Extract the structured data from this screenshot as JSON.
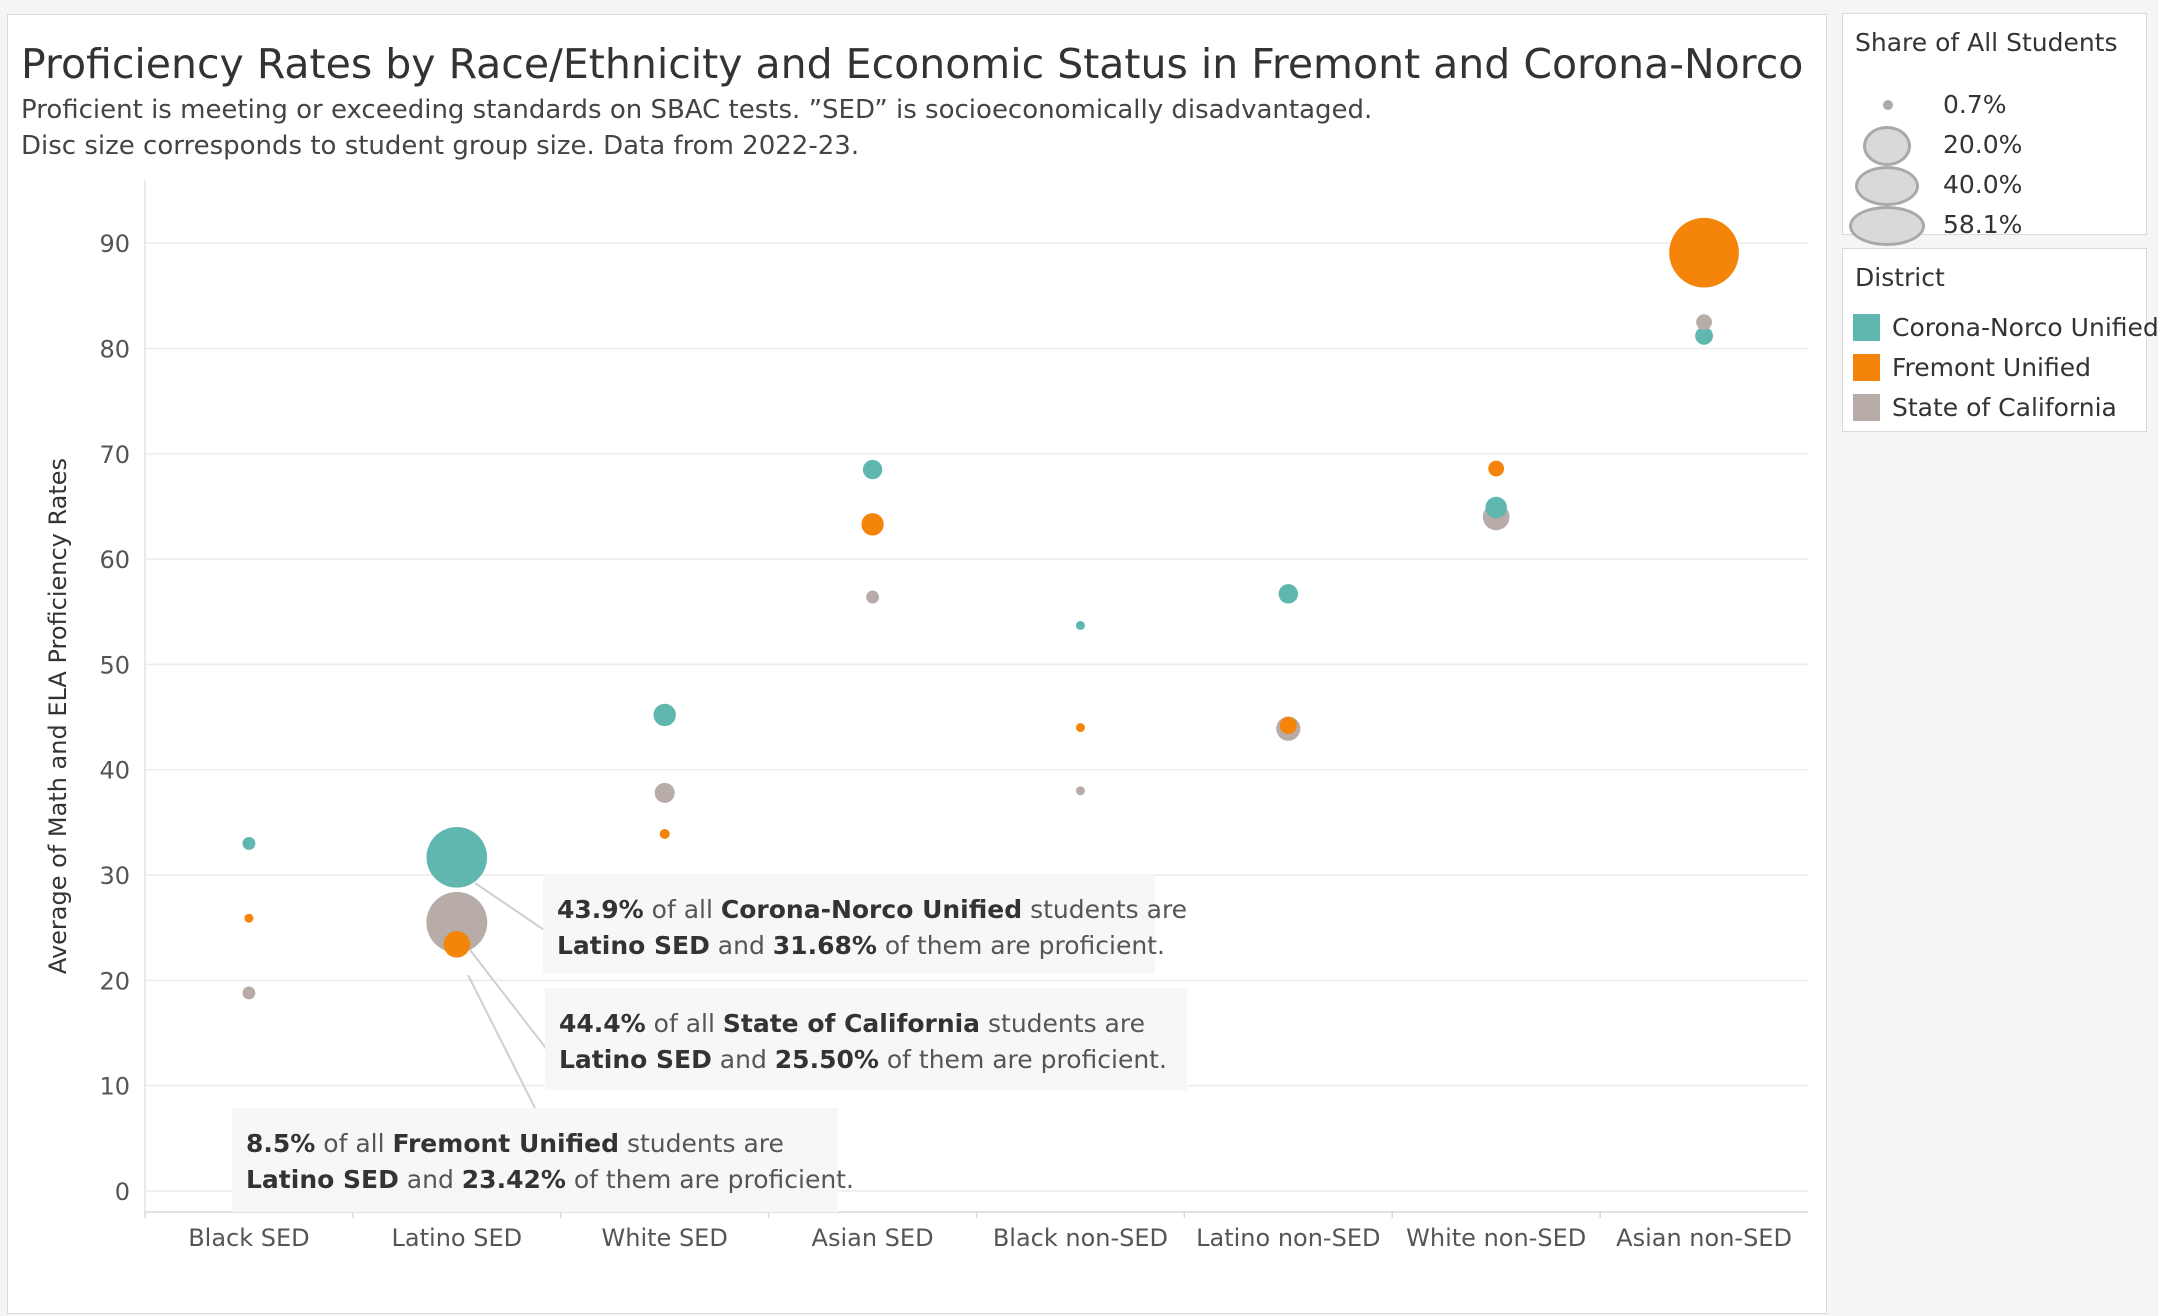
{
  "title": "Proficiency Rates by Race/Ethnicity and Economic Status in Fremont and Corona-Norco",
  "subtitle_lines": [
    "Proficient is meeting or exceeding standards on SBAC tests. ”SED” is socioeconomically disadvantaged.",
    "Disc size corresponds to student group size. Data from 2022-23."
  ],
  "size_legend": {
    "title": "Share of All Students",
    "items": [
      {
        "label": "0.7%",
        "value": 0.7
      },
      {
        "label": "20.0%",
        "value": 20.0
      },
      {
        "label": "40.0%",
        "value": 40.0
      },
      {
        "label": "58.1%",
        "value": 58.1
      }
    ]
  },
  "district_legend": {
    "title": "District",
    "items": [
      {
        "label": "Corona-Norco Unified",
        "color": "#5fb7b0"
      },
      {
        "label": "Fremont Unified",
        "color": "#f5850a"
      },
      {
        "label": "State of California",
        "color": "#b8aca9"
      }
    ]
  },
  "chart_data": {
    "type": "scatter",
    "xlabel": "",
    "ylabel": "Average of Math and ELA Proficiency Rates",
    "ylim": [
      -2,
      96
    ],
    "yticks": [
      0,
      10,
      20,
      30,
      40,
      50,
      60,
      70,
      80,
      90
    ],
    "grid": true,
    "legend": "right",
    "categories": [
      "Black SED",
      "Latino SED",
      "White SED",
      "Asian SED",
      "Black non-SED",
      "Latino non-SED",
      "White non-SED",
      "Asian non-SED"
    ],
    "series": [
      {
        "name": "Corona-Norco Unified",
        "color": "#5fb7b0",
        "values": [
          33.0,
          31.68,
          45.2,
          68.5,
          53.7,
          56.7,
          64.9,
          81.2
        ],
        "shares": [
          2.0,
          43.9,
          6.0,
          4.5,
          0.7,
          4.5,
          5.5,
          3.8
        ]
      },
      {
        "name": "State of California",
        "color": "#b8aca9",
        "values": [
          18.8,
          25.5,
          37.8,
          56.4,
          38.0,
          43.9,
          64.0,
          82.5
        ],
        "shares": [
          2.0,
          44.4,
          4.8,
          2.0,
          0.7,
          7.0,
          8.5,
          3.0
        ]
      },
      {
        "name": "Fremont Unified",
        "color": "#f5850a",
        "values": [
          25.9,
          23.42,
          33.9,
          63.3,
          44.0,
          44.2,
          68.6,
          89.1
        ],
        "shares": [
          0.7,
          8.5,
          1.2,
          6.0,
          0.5,
          3.5,
          3.0,
          58.1
        ]
      }
    ],
    "annotations": [
      {
        "share": "43.9%",
        "district": "Corona-Norco Unified",
        "group": "Latino SED",
        "rate": "31.68%"
      },
      {
        "share": "44.4%",
        "district": "State of California",
        "group": "Latino SED",
        "rate": "25.50%"
      },
      {
        "share": "8.5%",
        "district": "Fremont Unified",
        "group": "Latino SED",
        "rate": "23.42%"
      }
    ],
    "annotation_text": {
      "of_all": "of all",
      "students_are": "students are",
      "and": "and",
      "of_them": "of them are proficient."
    }
  }
}
